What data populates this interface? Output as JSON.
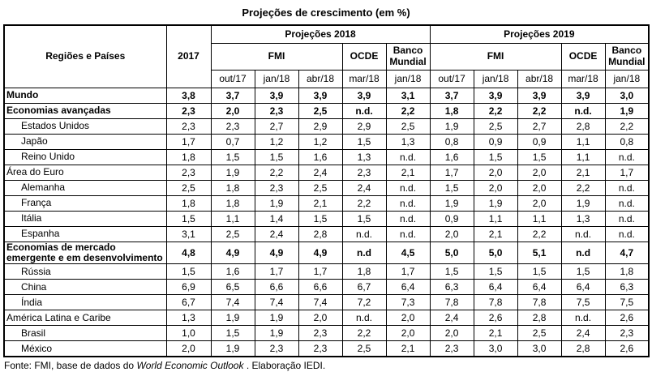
{
  "title": "Projeções de crescimento (em %)",
  "colors": {
    "background": "#ffffff",
    "border": "#000000",
    "text": "#000000"
  },
  "table": {
    "region_header": "Regiões e Países",
    "year_header": "2017",
    "groups": [
      {
        "label": "Projeções 2018",
        "agencies": [
          {
            "label": "FMI",
            "dates": [
              "out/17",
              "jan/18",
              "abr/18"
            ]
          },
          {
            "label": "OCDE",
            "dates": [
              "mar/18"
            ]
          },
          {
            "label": "Banco Mundial",
            "dates": [
              "jan/18"
            ]
          }
        ]
      },
      {
        "label": "Projeções 2019",
        "agencies": [
          {
            "label": "FMI",
            "dates": [
              "out/17",
              "jan/18",
              "abr/18"
            ]
          },
          {
            "label": "OCDE",
            "dates": [
              "mar/18"
            ]
          },
          {
            "label": "Banco Mundial",
            "dates": [
              "jan/18"
            ]
          }
        ]
      }
    ],
    "rows": [
      {
        "label": "Mundo",
        "bold": true,
        "indent": false,
        "values": [
          "3,8",
          "3,7",
          "3,9",
          "3,9",
          "3,9",
          "3,1",
          "3,7",
          "3,9",
          "3,9",
          "3,9",
          "3,0"
        ]
      },
      {
        "label": "Economias avançadas",
        "bold": true,
        "indent": false,
        "values": [
          "2,3",
          "2,0",
          "2,3",
          "2,5",
          "n.d.",
          "2,2",
          "1,8",
          "2,2",
          "2,2",
          "n.d.",
          "1,9"
        ]
      },
      {
        "label": "Estados Unidos",
        "bold": false,
        "indent": true,
        "values": [
          "2,3",
          "2,3",
          "2,7",
          "2,9",
          "2,9",
          "2,5",
          "1,9",
          "2,5",
          "2,7",
          "2,8",
          "2,2"
        ]
      },
      {
        "label": "Japão",
        "bold": false,
        "indent": true,
        "values": [
          "1,7",
          "0,7",
          "1,2",
          "1,2",
          "1,5",
          "1,3",
          "0,8",
          "0,9",
          "0,9",
          "1,1",
          "0,8"
        ]
      },
      {
        "label": "Reino Unido",
        "bold": false,
        "indent": true,
        "values": [
          "1,8",
          "1,5",
          "1,5",
          "1,6",
          "1,3",
          "n.d.",
          "1,6",
          "1,5",
          "1,5",
          "1,1",
          "n.d."
        ]
      },
      {
        "label": "Área do Euro",
        "bold": false,
        "indent": false,
        "values": [
          "2,3",
          "1,9",
          "2,2",
          "2,4",
          "2,3",
          "2,1",
          "1,7",
          "2,0",
          "2,0",
          "2,1",
          "1,7"
        ]
      },
      {
        "label": "Alemanha",
        "bold": false,
        "indent": true,
        "values": [
          "2,5",
          "1,8",
          "2,3",
          "2,5",
          "2,4",
          "n.d.",
          "1,5",
          "2,0",
          "2,0",
          "2,2",
          "n.d."
        ]
      },
      {
        "label": "França",
        "bold": false,
        "indent": true,
        "values": [
          "1,8",
          "1,8",
          "1,9",
          "2,1",
          "2,2",
          "n.d.",
          "1,9",
          "1,9",
          "2,0",
          "1,9",
          "n.d."
        ]
      },
      {
        "label": "Itália",
        "bold": false,
        "indent": true,
        "values": [
          "1,5",
          "1,1",
          "1,4",
          "1,5",
          "1,5",
          "n.d.",
          "0,9",
          "1,1",
          "1,1",
          "1,3",
          "n.d."
        ]
      },
      {
        "label": "Espanha",
        "bold": false,
        "indent": true,
        "values": [
          "3,1",
          "2,5",
          "2,4",
          "2,8",
          "n.d.",
          "n.d.",
          "2,0",
          "2,1",
          "2,2",
          "n.d.",
          "n.d."
        ]
      },
      {
        "label": "Economias de mercado emergente e em desenvolvimento",
        "bold": true,
        "indent": false,
        "values": [
          "4,8",
          "4,9",
          "4,9",
          "4,9",
          "n.d",
          "4,5",
          "5,0",
          "5,0",
          "5,1",
          "n.d",
          "4,7"
        ]
      },
      {
        "label": "Rússia",
        "bold": false,
        "indent": true,
        "values": [
          "1,5",
          "1,6",
          "1,7",
          "1,7",
          "1,8",
          "1,7",
          "1,5",
          "1,5",
          "1,5",
          "1,5",
          "1,8"
        ]
      },
      {
        "label": "China",
        "bold": false,
        "indent": true,
        "values": [
          "6,9",
          "6,5",
          "6,6",
          "6,6",
          "6,7",
          "6,4",
          "6,3",
          "6,4",
          "6,4",
          "6,4",
          "6,3"
        ]
      },
      {
        "label": "Índia",
        "bold": false,
        "indent": true,
        "values": [
          "6,7",
          "7,4",
          "7,4",
          "7,4",
          "7,2",
          "7,3",
          "7,8",
          "7,8",
          "7,8",
          "7,5",
          "7,5"
        ]
      },
      {
        "label": "América Latina e Caribe",
        "bold": false,
        "indent": false,
        "values": [
          "1,3",
          "1,9",
          "1,9",
          "2,0",
          "n.d.",
          "2,0",
          "2,4",
          "2,6",
          "2,8",
          "n.d.",
          "2,6"
        ]
      },
      {
        "label": "Brasil",
        "bold": false,
        "indent": true,
        "values": [
          "1,0",
          "1,5",
          "1,9",
          "2,3",
          "2,2",
          "2,0",
          "2,0",
          "2,1",
          "2,5",
          "2,4",
          "2,3"
        ]
      },
      {
        "label": "México",
        "bold": false,
        "indent": true,
        "values": [
          "2,0",
          "1,9",
          "2,3",
          "2,3",
          "2,5",
          "2,1",
          "2,3",
          "3,0",
          "3,0",
          "2,8",
          "2,6"
        ]
      }
    ]
  },
  "footer": {
    "prefix": "Fonte: FMI, base de dados do ",
    "italic": "World Economic Outlook",
    "suffix": " . Elaboração IEDI."
  }
}
